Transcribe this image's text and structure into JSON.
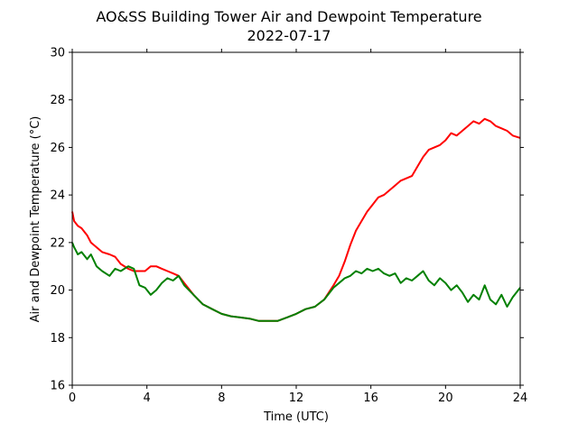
{
  "chart_data": {
    "type": "line",
    "title": "AO&SS Building Tower Air and Dewpoint Temperature",
    "subtitle": "2022-07-17",
    "xlabel": "Time (UTC)",
    "ylabel": "Air and Dewpoint Temperature (°C)",
    "xlim": [
      0,
      24
    ],
    "ylim": [
      16,
      30
    ],
    "xticks": [
      0,
      4,
      8,
      12,
      16,
      20,
      24
    ],
    "yticks": [
      16,
      18,
      20,
      22,
      24,
      26,
      28,
      30
    ],
    "grid": false,
    "series": [
      {
        "color": "#ff0000",
        "x": [
          0,
          0.1,
          0.3,
          0.5,
          0.8,
          1.0,
          1.3,
          1.6,
          2.0,
          2.3,
          2.6,
          3.0,
          3.3,
          3.6,
          3.9,
          4.2,
          4.5,
          4.8,
          5.1,
          5.4,
          5.7,
          6.0,
          6.5,
          7.0,
          7.5,
          8.0,
          8.5,
          9.0,
          9.5,
          10.0,
          10.5,
          11.0,
          11.5,
          12.0,
          12.5,
          13.0,
          13.5,
          14.0,
          14.3,
          14.6,
          14.9,
          15.2,
          15.5,
          15.8,
          16.1,
          16.4,
          16.7,
          17.0,
          17.3,
          17.6,
          17.9,
          18.2,
          18.5,
          18.8,
          19.1,
          19.4,
          19.7,
          20.0,
          20.3,
          20.6,
          20.9,
          21.2,
          21.5,
          21.8,
          22.1,
          22.4,
          22.7,
          23.0,
          23.3,
          23.6,
          24.0
        ],
        "y": [
          23.3,
          22.9,
          22.7,
          22.6,
          22.3,
          22.0,
          21.8,
          21.6,
          21.5,
          21.4,
          21.1,
          20.9,
          20.8,
          20.8,
          20.8,
          21.0,
          21.0,
          20.9,
          20.8,
          20.7,
          20.6,
          20.3,
          19.8,
          19.4,
          19.2,
          19.0,
          18.9,
          18.85,
          18.8,
          18.7,
          18.7,
          18.7,
          18.85,
          19.0,
          19.2,
          19.3,
          19.6,
          20.2,
          20.6,
          21.2,
          21.9,
          22.5,
          22.9,
          23.3,
          23.6,
          23.9,
          24.0,
          24.2,
          24.4,
          24.6,
          24.7,
          24.8,
          25.2,
          25.6,
          25.9,
          26.0,
          26.1,
          26.3,
          26.6,
          26.5,
          26.7,
          26.9,
          27.1,
          27.0,
          27.2,
          27.1,
          26.9,
          26.8,
          26.7,
          26.5,
          26.4
        ]
      },
      {
        "color": "#008000",
        "x": [
          0,
          0.1,
          0.3,
          0.5,
          0.8,
          1.0,
          1.3,
          1.6,
          2.0,
          2.3,
          2.6,
          3.0,
          3.3,
          3.6,
          3.9,
          4.2,
          4.5,
          4.8,
          5.1,
          5.4,
          5.7,
          6.0,
          6.5,
          7.0,
          7.5,
          8.0,
          8.5,
          9.0,
          9.5,
          10.0,
          10.5,
          11.0,
          11.5,
          12.0,
          12.5,
          13.0,
          13.5,
          14.0,
          14.3,
          14.6,
          14.9,
          15.2,
          15.5,
          15.8,
          16.1,
          16.4,
          16.7,
          17.0,
          17.3,
          17.6,
          17.9,
          18.2,
          18.5,
          18.8,
          19.1,
          19.4,
          19.7,
          20.0,
          20.3,
          20.6,
          20.9,
          21.2,
          21.5,
          21.8,
          22.1,
          22.4,
          22.7,
          23.0,
          23.3,
          23.6,
          24.0
        ],
        "y": [
          22.0,
          21.8,
          21.5,
          21.6,
          21.3,
          21.5,
          21.0,
          20.8,
          20.6,
          20.9,
          20.8,
          21.0,
          20.9,
          20.2,
          20.1,
          19.8,
          20.0,
          20.3,
          20.5,
          20.4,
          20.6,
          20.2,
          19.8,
          19.4,
          19.2,
          19.0,
          18.9,
          18.85,
          18.8,
          18.7,
          18.7,
          18.7,
          18.85,
          19.0,
          19.2,
          19.3,
          19.6,
          20.1,
          20.3,
          20.5,
          20.6,
          20.8,
          20.7,
          20.9,
          20.8,
          20.9,
          20.7,
          20.6,
          20.7,
          20.3,
          20.5,
          20.4,
          20.6,
          20.8,
          20.4,
          20.2,
          20.5,
          20.3,
          20.0,
          20.2,
          19.9,
          19.5,
          19.8,
          19.6,
          20.2,
          19.6,
          19.4,
          19.8,
          19.3,
          19.7,
          20.1
        ]
      }
    ]
  }
}
